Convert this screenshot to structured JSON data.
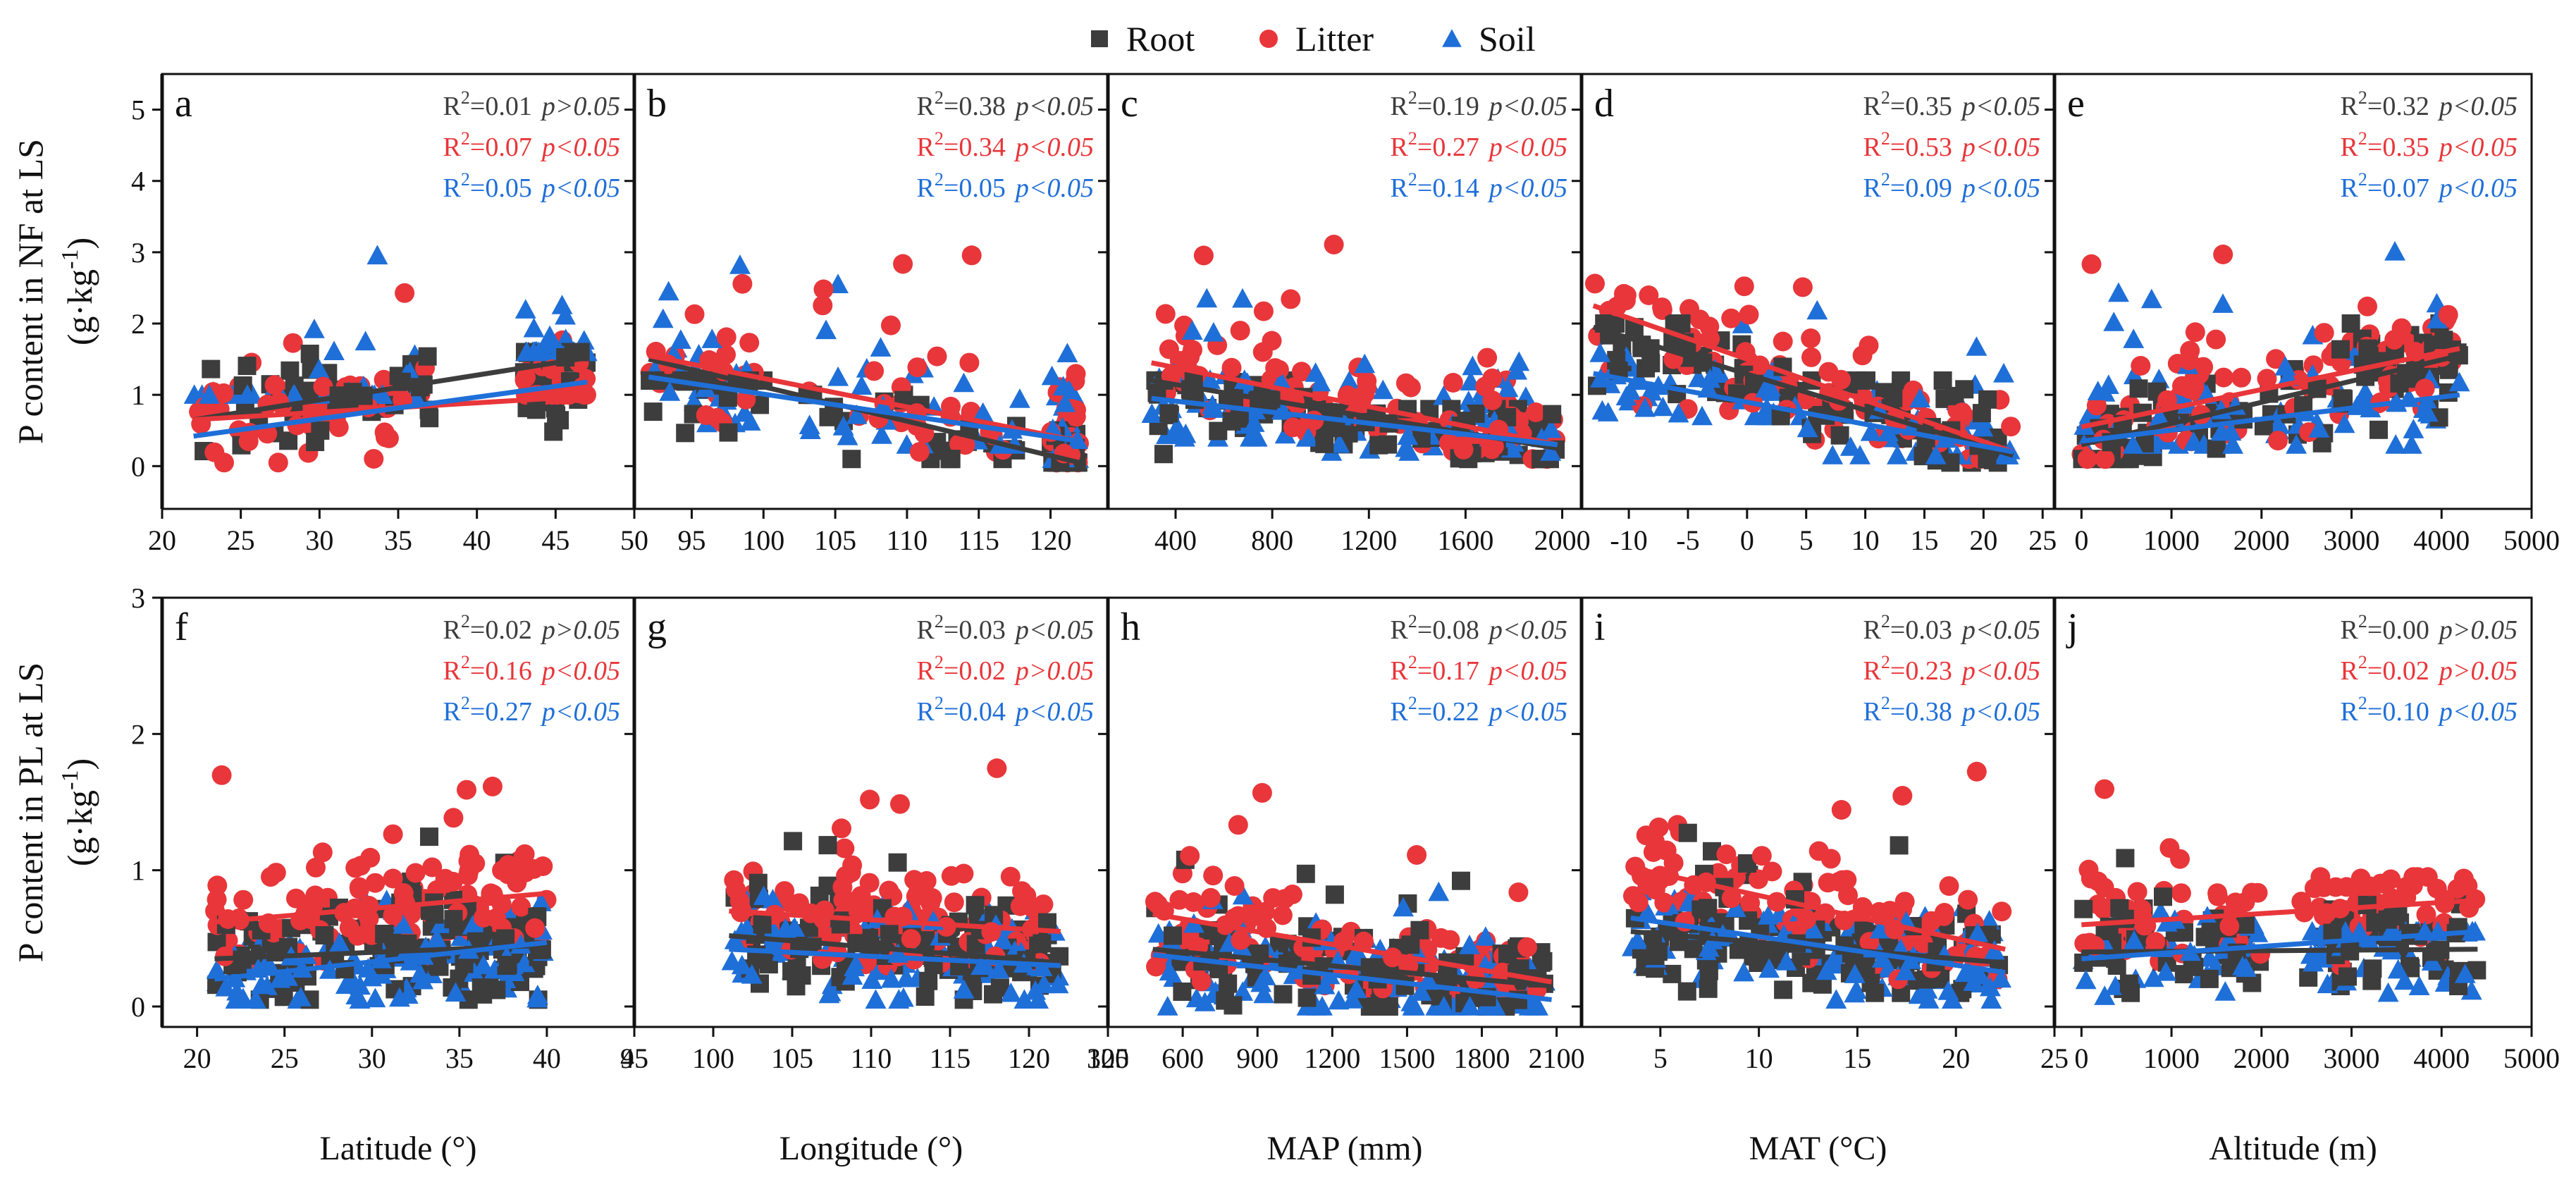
{
  "chart_data": {
    "type": "scatter",
    "legend": {
      "placement": "top-center",
      "entries": [
        {
          "name": "Root",
          "marker": "square",
          "color": "#3d3d3d"
        },
        {
          "name": "Litter",
          "marker": "circle",
          "color": "#e8363a"
        },
        {
          "name": "Soil",
          "marker": "triangle",
          "color": "#1f6fd8"
        }
      ]
    },
    "rows": [
      {
        "ylabel_line1": "P content in NF at LS",
        "ylabel_line2": "(g·kg",
        "ylabel_sup": "-1",
        "ylabel_close": ")",
        "ylim": [
          -0.6,
          5.5
        ],
        "yticks": [
          0,
          1,
          2,
          3,
          4,
          5
        ],
        "ytick_labels": [
          "0",
          "1",
          "2",
          "3",
          "4",
          "5"
        ]
      },
      {
        "ylabel_line1": "P content in PL at LS",
        "ylabel_line2": "(g·kg",
        "ylabel_sup": "-1",
        "ylabel_close": ")",
        "ylim": [
          -0.15,
          3.0
        ],
        "yticks": [
          0,
          1,
          2,
          3
        ],
        "ytick_labels": [
          "0",
          "1",
          "2",
          "3"
        ]
      }
    ],
    "columns": [
      {
        "xlabel": "Latitude (°)"
      },
      {
        "xlabel": "Longitude (°)"
      },
      {
        "xlabel": "MAP (mm)"
      },
      {
        "xlabel": "MAT (°C)"
      },
      {
        "xlabel": "Altitude (m)"
      }
    ],
    "panels": [
      {
        "letter": "a",
        "row": 0,
        "col": 0,
        "xlim": [
          20,
          50
        ],
        "xticks": [
          20,
          25,
          30,
          35,
          40,
          45,
          50
        ],
        "xtick_labels": [
          "20",
          "25",
          "30",
          "35",
          "40",
          "45",
          "50"
        ],
        "stats": [
          {
            "series": "Root",
            "r2": "=0.01",
            "p": "p>0.05"
          },
          {
            "series": "Litter",
            "r2": "=0.07",
            "p": "p<0.05"
          },
          {
            "series": "Soil",
            "r2": "=0.05",
            "p": "p<0.05"
          }
        ],
        "fits": {
          "Root": [
            [
              22,
              0.65
            ],
            [
              47,
              1.52
            ]
          ],
          "Litter": [
            [
              22,
              0.65
            ],
            [
              47,
              0.98
            ]
          ],
          "Soil": [
            [
              22,
              0.42
            ],
            [
              47,
              1.18
            ]
          ]
        },
        "clusters": [
          [
            22,
            37,
            0.05,
            1.6,
            0.05,
            3.2,
            1.0,
            3.0,
            0.05,
            3.0
          ],
          [
            43,
            47,
            0.2,
            1.6,
            1.0,
            2.0,
            1.6,
            2.4,
            0.15,
            2.4
          ]
        ],
        "n": 90,
        "seed": 11
      },
      {
        "letter": "b",
        "row": 0,
        "col": 1,
        "xlim": [
          91,
          124
        ],
        "xticks": [
          95,
          100,
          105,
          110,
          115,
          120
        ],
        "xtick_labels": [
          "95",
          "100",
          "105",
          "110",
          "115",
          "120"
        ],
        "stats": [
          {
            "series": "Root",
            "r2": "=0.38",
            "p": "p<0.05"
          },
          {
            "series": "Litter",
            "r2": "=0.34",
            "p": "p<0.05"
          },
          {
            "series": "Soil",
            "r2": "=0.05",
            "p": "p<0.05"
          }
        ],
        "fits": {
          "Root": [
            [
              92,
              1.5
            ],
            [
              122,
              0.05
            ]
          ],
          "Litter": [
            [
              92,
              1.55
            ],
            [
              122,
              0.35
            ]
          ],
          "Soil": [
            [
              92,
              1.25
            ],
            [
              122,
              0.35
            ]
          ]
        },
        "clusters": [
          [
            92,
            100,
            0.2,
            1.2,
            0.4,
            3.1,
            0.6,
            3.05,
            0.4,
            2.0
          ],
          [
            103,
            118,
            0.1,
            1.0,
            0.2,
            3.2,
            0.3,
            2.6,
            0.05,
            2.95
          ],
          [
            120,
            122,
            0.05,
            0.5,
            0.05,
            2.0,
            0.1,
            2.0,
            0.1,
            2.4
          ]
        ],
        "n": 90,
        "seed": 23
      },
      {
        "letter": "c",
        "row": 0,
        "col": 2,
        "xlim": [
          120,
          2080
        ],
        "xticks": [
          400,
          800,
          1200,
          1600,
          2000
        ],
        "xtick_labels": [
          "400",
          "800",
          "1200",
          "1600",
          "2000"
        ],
        "stats": [
          {
            "series": "Root",
            "r2": "=0.19",
            "p": "p<0.05"
          },
          {
            "series": "Litter",
            "r2": "=0.27",
            "p": "p<0.05"
          },
          {
            "series": "Soil",
            "r2": "=0.14",
            "p": "p<0.05"
          }
        ],
        "fits": {
          "Root": [
            [
              300,
              1.2
            ],
            [
              1980,
              0.25
            ]
          ],
          "Litter": [
            [
              300,
              1.45
            ],
            [
              1980,
              0.3
            ]
          ],
          "Soil": [
            [
              300,
              0.95
            ],
            [
              1980,
              0.3
            ]
          ]
        },
        "clusters": [
          [
            300,
            1000,
            0.1,
            1.2,
            0.1,
            3.1,
            0.4,
            2.7,
            0.05,
            3.0
          ],
          [
            1000,
            1980,
            0.1,
            0.8,
            0.1,
            3.2,
            0.2,
            1.65,
            0.05,
            1.1
          ]
        ],
        "n": 90,
        "seed": 37
      },
      {
        "letter": "d",
        "row": 0,
        "col": 3,
        "xlim": [
          -14,
          26
        ],
        "xticks": [
          -10,
          -5,
          0,
          5,
          10,
          15,
          20,
          25
        ],
        "xtick_labels": [
          "-10",
          "-5",
          "0",
          "5",
          "10",
          "15",
          "20",
          "25"
        ],
        "stats": [
          {
            "series": "Root",
            "r2": "=0.35",
            "p": "p<0.05"
          },
          {
            "series": "Litter",
            "r2": "=0.53",
            "p": "p<0.05"
          },
          {
            "series": "Soil",
            "r2": "=0.09",
            "p": "p<0.05"
          }
        ],
        "fits": {
          "Root": [
            [
              -13,
              1.95
            ],
            [
              22.5,
              0.15
            ]
          ],
          "Litter": [
            [
              -13,
              2.25
            ],
            [
              22.5,
              0.2
            ]
          ],
          "Soil": [
            [
              -13,
              1.3
            ],
            [
              22.5,
              0.2
            ]
          ]
        },
        "clusters": [
          [
            -13,
            5,
            0.3,
            2.0,
            0.5,
            2.6,
            0.7,
            2.35,
            0.4,
            1.9
          ],
          [
            5,
            22.5,
            0.05,
            1.2,
            0.1,
            3.2,
            0.15,
            3.05,
            0.05,
            2.95
          ]
        ],
        "n": 90,
        "seed": 53
      },
      {
        "letter": "e",
        "row": 0,
        "col": 4,
        "xlim": [
          -300,
          5000
        ],
        "xticks": [
          0,
          1000,
          2000,
          3000,
          4000,
          5000
        ],
        "xtick_labels": [
          "0",
          "1000",
          "2000",
          "3000",
          "4000",
          "5000"
        ],
        "stats": [
          {
            "series": "Root",
            "r2": "=0.32",
            "p": "p<0.05"
          },
          {
            "series": "Litter",
            "r2": "=0.35",
            "p": "p<0.05"
          },
          {
            "series": "Soil",
            "r2": "=0.07",
            "p": "p<0.05"
          }
        ],
        "fits": {
          "Root": [
            [
              0,
              0.3
            ],
            [
              4200,
              1.55
            ]
          ],
          "Litter": [
            [
              0,
              0.55
            ],
            [
              4200,
              1.65
            ]
          ],
          "Soil": [
            [
              0,
              0.35
            ],
            [
              4200,
              1.0
            ]
          ]
        },
        "clusters": [
          [
            0,
            1800,
            0.1,
            1.2,
            0.1,
            3.2,
            0.3,
            2.6,
            0.05,
            2.95
          ],
          [
            2000,
            4200,
            0.15,
            2.0,
            0.2,
            3.15,
            0.3,
            3.05,
            0.2,
            2.1
          ]
        ],
        "n": 90,
        "seed": 71
      },
      {
        "letter": "f",
        "row": 1,
        "col": 0,
        "xlim": [
          18,
          45
        ],
        "xticks": [
          20,
          25,
          30,
          35,
          40,
          45
        ],
        "xtick_labels": [
          "20",
          "25",
          "30",
          "35",
          "40",
          "45"
        ],
        "stats": [
          {
            "series": "Root",
            "r2": "=0.02",
            "p": "p>0.05"
          },
          {
            "series": "Litter",
            "r2": "=0.16",
            "p": "p<0.05"
          },
          {
            "series": "Soil",
            "r2": "=0.27",
            "p": "p<0.05"
          }
        ],
        "fits": {
          "Root": [
            [
              21,
              0.35
            ],
            [
              40,
              0.45
            ]
          ],
          "Litter": [
            [
              21,
              0.62
            ],
            [
              40,
              0.83
            ]
          ],
          "Soil": [
            [
              21,
              0.2
            ],
            [
              40,
              0.47
            ]
          ]
        },
        "clusters": [
          [
            21,
            40,
            0.05,
            1.3,
            0.2,
            1.75,
            0.05,
            0.8,
            0.05,
            0.75
          ]
        ],
        "n": 110,
        "seed": 89
      },
      {
        "letter": "g",
        "row": 1,
        "col": 1,
        "xlim": [
          95,
          125
        ],
        "xticks": [
          95,
          100,
          105,
          110,
          115,
          120,
          125
        ],
        "xtick_labels": [
          "95",
          "100",
          "105",
          "110",
          "115",
          "120",
          "125"
        ],
        "stats": [
          {
            "series": "Root",
            "r2": "=0.03",
            "p": "p<0.05"
          },
          {
            "series": "Litter",
            "r2": "=0.02",
            "p": "p>0.05"
          },
          {
            "series": "Soil",
            "r2": "=0.04",
            "p": "p<0.05"
          }
        ],
        "fits": {
          "Root": [
            [
              101,
              0.52
            ],
            [
              122,
              0.32
            ]
          ],
          "Litter": [
            [
              101,
              0.7
            ],
            [
              122,
              0.55
            ]
          ],
          "Soil": [
            [
              101,
              0.42
            ],
            [
              122,
              0.3
            ]
          ]
        },
        "clusters": [
          [
            101,
            122,
            0.05,
            1.3,
            0.3,
            1.75,
            0.05,
            0.85,
            0.05,
            0.75
          ]
        ],
        "n": 110,
        "seed": 97
      },
      {
        "letter": "h",
        "row": 1,
        "col": 2,
        "xlim": [
          300,
          2200
        ],
        "xticks": [
          300,
          600,
          900,
          1200,
          1500,
          1800,
          2100
        ],
        "xtick_labels": [
          "300",
          "600",
          "900",
          "1200",
          "1500",
          "1800",
          "2100"
        ],
        "stats": [
          {
            "series": "Root",
            "r2": "=0.08",
            "p": "p<0.05"
          },
          {
            "series": "Litter",
            "r2": "=0.17",
            "p": "p<0.05"
          },
          {
            "series": "Soil",
            "r2": "=0.22",
            "p": "p<0.05"
          }
        ],
        "fits": {
          "Root": [
            [
              480,
              0.42
            ],
            [
              2080,
              0.15
            ]
          ],
          "Litter": [
            [
              480,
              0.68
            ],
            [
              2080,
              0.18
            ]
          ],
          "Soil": [
            [
              480,
              0.38
            ],
            [
              2080,
              0.05
            ]
          ]
        },
        "clusters": [
          [
            480,
            2080,
            0.0,
            1.2,
            0.1,
            1.7,
            0.0,
            0.85,
            0.0,
            0.7
          ]
        ],
        "n": 110,
        "seed": 113
      },
      {
        "letter": "i",
        "row": 1,
        "col": 3,
        "xlim": [
          1,
          25
        ],
        "xticks": [
          5,
          10,
          15,
          20,
          25
        ],
        "xtick_labels": [
          "5",
          "10",
          "15",
          "20",
          "25"
        ],
        "stats": [
          {
            "series": "Root",
            "r2": "=0.03",
            "p": "p<0.05"
          },
          {
            "series": "Litter",
            "r2": "=0.23",
            "p": "p<0.05"
          },
          {
            "series": "Soil",
            "r2": "=0.38",
            "p": "p<0.05"
          }
        ],
        "fits": {
          "Root": [
            [
              3.5,
              0.55
            ],
            [
              22.5,
              0.32
            ]
          ],
          "Litter": [
            [
              3.5,
              1.02
            ],
            [
              22.5,
              0.42
            ]
          ],
          "Soil": [
            [
              3.5,
              0.65
            ],
            [
              22.5,
              0.25
            ]
          ]
        },
        "clusters": [
          [
            3.5,
            22.5,
            0.1,
            1.3,
            0.2,
            1.75,
            0.05,
            0.85,
            0.05,
            0.8
          ]
        ],
        "n": 110,
        "seed": 131
      },
      {
        "letter": "j",
        "row": 1,
        "col": 4,
        "xlim": [
          -300,
          5000
        ],
        "xticks": [
          0,
          1000,
          2000,
          3000,
          4000,
          5000
        ],
        "xtick_labels": [
          "0",
          "1000",
          "2000",
          "3000",
          "4000",
          "5000"
        ],
        "stats": [
          {
            "series": "Root",
            "r2": "=0.00",
            "p": "p>0.05"
          },
          {
            "series": "Litter",
            "r2": "=0.02",
            "p": "p>0.05"
          },
          {
            "series": "Soil",
            "r2": "=0.10",
            "p": "p<0.05"
          }
        ],
        "fits": {
          "Root": [
            [
              0,
              0.4
            ],
            [
              4400,
              0.42
            ]
          ],
          "Litter": [
            [
              0,
              0.6
            ],
            [
              4400,
              0.78
            ]
          ],
          "Soil": [
            [
              0,
              0.35
            ],
            [
              4400,
              0.55
            ]
          ]
        },
        "clusters": [
          [
            0,
            2000,
            0.1,
            1.3,
            0.2,
            1.75,
            0.05,
            0.75,
            0.05,
            0.7
          ],
          [
            2400,
            4400,
            0.15,
            0.8,
            0.3,
            0.95,
            0.1,
            0.55,
            0.1,
            0.6
          ]
        ],
        "n": 100,
        "seed": 149
      }
    ]
  }
}
